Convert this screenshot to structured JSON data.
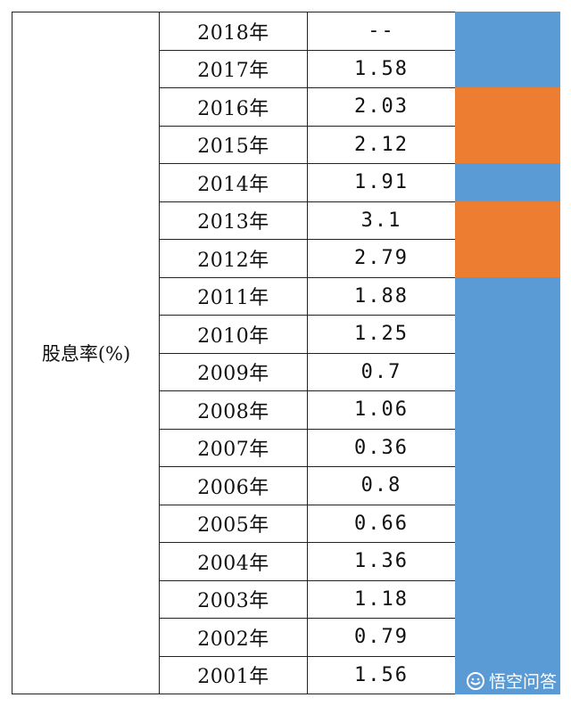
{
  "table": {
    "label": "股息率(%)",
    "rows": [
      {
        "year": "2018年",
        "value": "--"
      },
      {
        "year": "2017年",
        "value": "1.58"
      },
      {
        "year": "2016年",
        "value": "2.03"
      },
      {
        "year": "2015年",
        "value": "2.12"
      },
      {
        "year": "2014年",
        "value": "1.91"
      },
      {
        "year": "2013年",
        "value": "3.1"
      },
      {
        "year": "2012年",
        "value": "2.79"
      },
      {
        "year": "2011年",
        "value": "1.88"
      },
      {
        "year": "2010年",
        "value": "1.25"
      },
      {
        "year": "2009年",
        "value": "0.7"
      },
      {
        "year": "2008年",
        "value": "1.06"
      },
      {
        "year": "2007年",
        "value": "0.36"
      },
      {
        "year": "2006年",
        "value": "0.8"
      },
      {
        "year": "2005年",
        "value": "0.66"
      },
      {
        "year": "2004年",
        "value": "1.36"
      },
      {
        "year": "2003年",
        "value": "1.18"
      },
      {
        "year": "2002年",
        "value": "0.79"
      },
      {
        "year": "2001年",
        "value": "1.56"
      }
    ]
  },
  "highlight_band": {
    "colors": {
      "blue": "#5b9bd5",
      "orange": "#ed7d31"
    },
    "segments": [
      "blue",
      "blue",
      "orange",
      "orange",
      "blue",
      "orange",
      "orange",
      "blue",
      "blue",
      "blue",
      "blue",
      "blue",
      "blue",
      "blue",
      "blue",
      "blue",
      "blue",
      "blue"
    ]
  },
  "watermark": {
    "text": "悟空问答",
    "icon": "wukong-logo-icon"
  }
}
